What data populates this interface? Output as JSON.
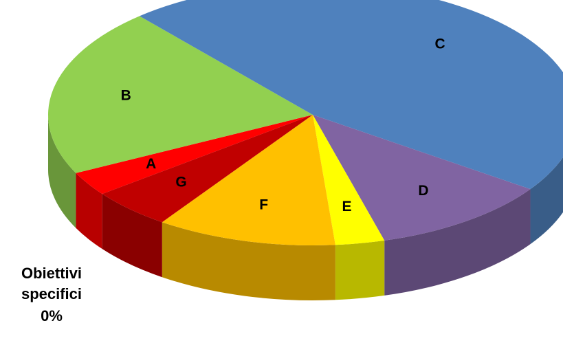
{
  "chart_data": {
    "type": "pie",
    "categories": [
      "A",
      "B",
      "C",
      "D",
      "E",
      "F",
      "G",
      "Obiettivi specifici"
    ],
    "values": [
      3,
      21,
      46,
      11,
      3,
      11,
      5,
      0
    ],
    "value_labels": [
      null,
      null,
      null,
      null,
      null,
      null,
      null,
      "0%"
    ],
    "colors": [
      "#ff0000",
      "#92d050",
      "#4f81bd",
      "#8064a2",
      "#ffff00",
      "#ffc000",
      "#c00000",
      "#f79646"
    ]
  }
}
